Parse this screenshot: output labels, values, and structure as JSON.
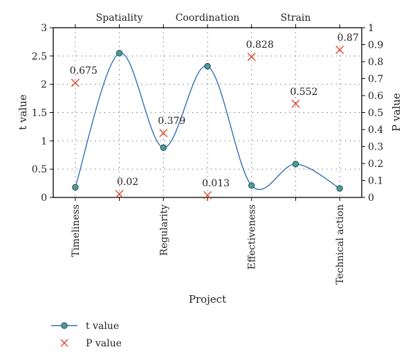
{
  "chart_data": {
    "type": "line",
    "x": [
      "Timeliness",
      "Spatiality",
      "Regularity",
      "Coordination",
      "Effectiveness",
      "Strain",
      "Technical action"
    ],
    "xlabel": "Project",
    "top_category_labels": [
      "Spatiality",
      "Coordination",
      "Strain"
    ],
    "bottom_category_labels": [
      "Timeliness",
      "Regularity",
      "Effectiveness",
      "Technical action"
    ],
    "ylabel_left": "t value",
    "ylabel_right": "P value",
    "ylim_left": [
      0,
      3
    ],
    "ylim_right": [
      0,
      1
    ],
    "yticks_left": [
      "0",
      "0.5",
      "1",
      "1.5",
      "2",
      "2.5",
      "3"
    ],
    "yticks_right": [
      "0",
      "0.1",
      "0.2",
      "0.3",
      "0.4",
      "0.5",
      "0.6",
      "0.7",
      "0.8",
      "0.9",
      "1"
    ],
    "grid": true,
    "legend_position": "bottom-left",
    "series": [
      {
        "name": "t value",
        "axis": "left",
        "style": "smooth line with circle markers",
        "values": [
          0.18,
          2.55,
          0.88,
          2.32,
          0.21,
          0.59,
          0.16
        ]
      },
      {
        "name": "P value",
        "axis": "right",
        "style": "cross markers",
        "values": [
          0.675,
          0.02,
          0.379,
          0.013,
          0.828,
          0.552,
          0.87
        ],
        "labels": [
          "0.675",
          "0.02",
          "0.379",
          "0.013",
          "0.828",
          "0.552",
          "0.87"
        ]
      }
    ],
    "colors": {
      "line": "#2f6fb8",
      "marker_fill": "#4e9a96",
      "marker_stroke": "#1f4f55",
      "cross": "#e0452a",
      "grid": "#555555",
      "axis": "#000000"
    }
  }
}
